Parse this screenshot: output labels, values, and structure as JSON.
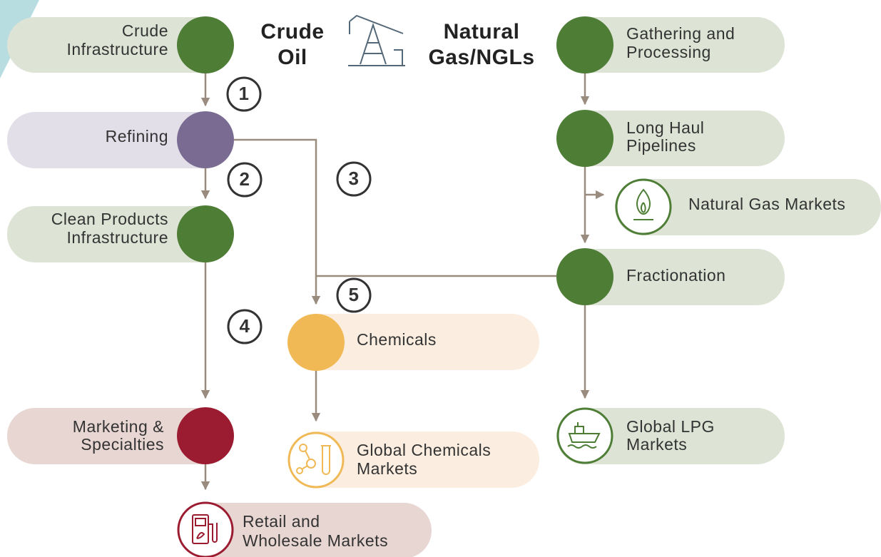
{
  "header": {
    "crude": [
      "Crude",
      "Oil"
    ],
    "gas": [
      "Natural",
      "Gas/NGLs"
    ]
  },
  "nodes": [
    {
      "lines": [
        "Crude",
        "Infrastructure"
      ]
    },
    {
      "lines": [
        "Refining"
      ]
    },
    {
      "lines": [
        "Clean Products",
        "Infrastructure"
      ]
    },
    {
      "lines": [
        "Marketing &",
        "Specialties"
      ]
    },
    {
      "lines": [
        "Retail and",
        "Wholesale Markets"
      ]
    },
    {
      "lines": [
        "Chemicals"
      ]
    },
    {
      "lines": [
        "Global Chemicals",
        "Markets"
      ]
    },
    {
      "lines": [
        "Gathering and",
        "Processing"
      ]
    },
    {
      "lines": [
        "Long Haul",
        "Pipelines"
      ]
    },
    {
      "lines": [
        "Natural Gas Markets"
      ]
    },
    {
      "lines": [
        "Fractionation"
      ]
    },
    {
      "lines": [
        "Global LPG",
        "Markets"
      ]
    }
  ],
  "steps": [
    "1",
    "2",
    "3",
    "4",
    "5"
  ]
}
